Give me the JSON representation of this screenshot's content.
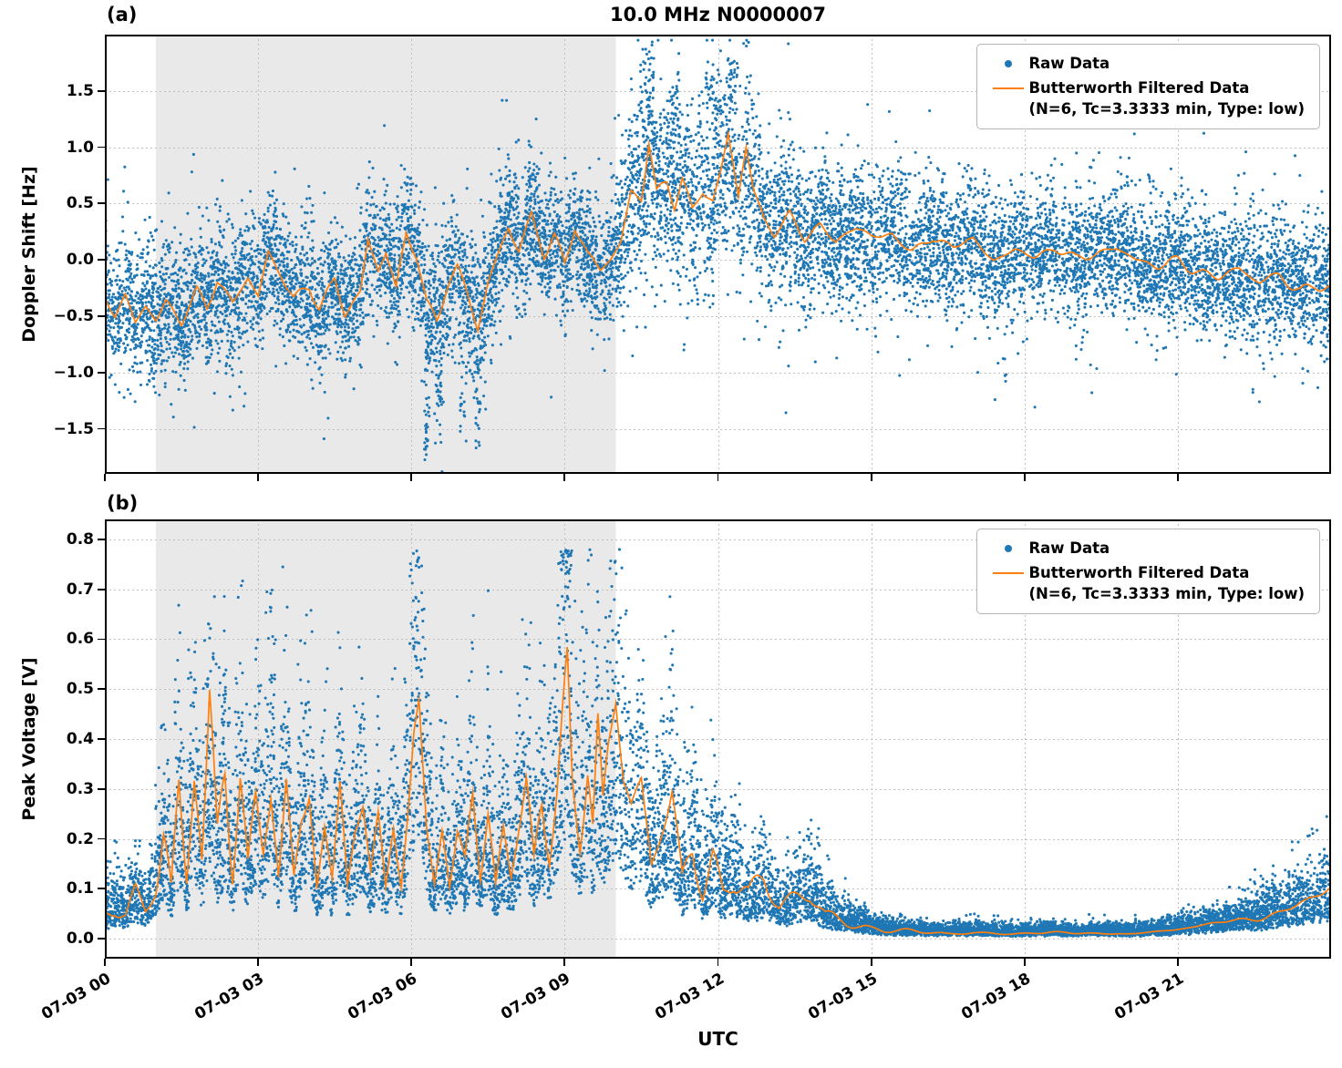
{
  "figure": {
    "title": "10.0 MHz N0000007",
    "xlabel": "UTC",
    "background": "#ffffff",
    "colors": {
      "raw": "#1f77b4",
      "filtered": "#ff7f0e",
      "shade": "#e9e9e9",
      "grid": "#bfbfbf",
      "axis": "#000000"
    }
  },
  "legend": {
    "raw_label": "Raw Data",
    "filtered_label": "Butterworth Filtered Data",
    "filtered_sublabel": "(N=6, Tc=3.3333 min, Type: low)"
  },
  "chart_data": [
    {
      "type": "scatter",
      "panel_key": "a",
      "panel_label": "(a)",
      "ylabel": "Doppler Shift [Hz]",
      "ylim": [
        -1.9,
        2.0
      ],
      "yticks": [
        1.5,
        1.0,
        0.5,
        0.0,
        -0.5,
        -1.0,
        -1.5
      ],
      "ytick_labels": [
        "1.5",
        "1.0",
        "0.5",
        "0.0",
        "−0.5",
        "−1.0",
        "−1.5"
      ],
      "xlim_hours": [
        0,
        24
      ],
      "xticks_hours": [
        0,
        3,
        6,
        9,
        12,
        15,
        18,
        21
      ],
      "shade_hours": [
        1,
        10
      ],
      "grid": true,
      "series": [
        {
          "name": "Raw Data",
          "kind": "scatter",
          "n": 12000,
          "wide_frac": 0.1,
          "wide_mult": 1.7,
          "spread_t": [
            0,
            1,
            3,
            5,
            6,
            7,
            8,
            9.5,
            10,
            10.4,
            11,
            12.6,
            13.2,
            14,
            16,
            18,
            20,
            22,
            24
          ],
          "spread_v": [
            0.27,
            0.3,
            0.28,
            0.28,
            0.3,
            0.32,
            0.28,
            0.26,
            0.28,
            0.4,
            0.38,
            0.4,
            0.33,
            0.3,
            0.28,
            0.27,
            0.27,
            0.27,
            0.28
          ],
          "outliers": [
            {
              "t": 1.0,
              "n": 15,
              "v": -0.95,
              "st": 0.2,
              "sv": 0.12
            },
            {
              "t": 6.3,
              "n": 28,
              "v": -1.45,
              "st": 0.05,
              "sv": 0.22
            },
            {
              "t": 6.55,
              "n": 22,
              "v": -1.15,
              "st": 0.05,
              "sv": 0.28
            },
            {
              "t": 7.0,
              "n": 22,
              "v": -1.05,
              "st": 0.08,
              "sv": 0.3
            },
            {
              "t": 7.3,
              "n": 18,
              "v": -1.35,
              "st": 0.05,
              "sv": 0.25
            },
            {
              "t": 10.6,
              "n": 45,
              "v": 1.45,
              "st": 0.15,
              "sv": 0.22
            },
            {
              "t": 11.15,
              "n": 30,
              "v": 1.35,
              "st": 0.1,
              "sv": 0.22
            },
            {
              "t": 11.9,
              "n": 40,
              "v": 1.5,
              "st": 0.14,
              "sv": 0.22
            },
            {
              "t": 12.3,
              "n": 25,
              "v": 1.55,
              "st": 0.08,
              "sv": 0.18
            },
            {
              "t": 17.6,
              "n": 5,
              "v": -1.0,
              "st": 0.04,
              "sv": 0.1
            }
          ]
        },
        {
          "name": "Butterworth Filtered Data (N=6, Tc=3.3333 min, Type: low)",
          "kind": "line",
          "noise_amp": 0.09,
          "t": [
            0,
            0.2,
            0.4,
            0.6,
            0.8,
            1.0,
            1.2,
            1.5,
            1.8,
            2.0,
            2.2,
            2.5,
            2.8,
            3.0,
            3.2,
            3.45,
            3.7,
            4.0,
            4.2,
            4.5,
            4.7,
            5.0,
            5.15,
            5.35,
            5.5,
            5.7,
            5.9,
            6.1,
            6.3,
            6.5,
            6.7,
            6.9,
            7.1,
            7.3,
            7.5,
            7.7,
            7.9,
            8.1,
            8.35,
            8.6,
            8.8,
            9.0,
            9.2,
            9.45,
            9.7,
            9.9,
            10.1,
            10.3,
            10.5,
            10.65,
            10.8,
            11.0,
            11.15,
            11.3,
            11.5,
            11.7,
            11.9,
            12.05,
            12.2,
            12.4,
            12.55,
            12.7,
            12.9,
            13.1,
            13.4,
            13.7,
            14.0,
            14.3,
            14.7,
            15.0,
            15.4,
            15.8,
            16.2,
            16.6,
            17.0,
            17.4,
            17.8,
            18.2,
            18.6,
            19.0,
            19.4,
            19.8,
            20.2,
            20.6,
            21.0,
            21.4,
            21.8,
            22.2,
            22.6,
            23.0,
            23.4,
            23.7,
            24.0
          ],
          "v": [
            -0.35,
            -0.5,
            -0.3,
            -0.55,
            -0.4,
            -0.5,
            -0.35,
            -0.55,
            -0.3,
            -0.45,
            -0.2,
            -0.4,
            -0.15,
            -0.3,
            0.1,
            -0.1,
            -0.35,
            -0.25,
            -0.45,
            -0.2,
            -0.5,
            -0.3,
            0.2,
            -0.05,
            0.1,
            -0.25,
            0.25,
            0.05,
            -0.4,
            -0.55,
            -0.25,
            -0.1,
            -0.3,
            -0.6,
            -0.2,
            0.05,
            0.3,
            0.1,
            0.4,
            0.05,
            0.2,
            -0.05,
            0.3,
            0.05,
            -0.1,
            0.0,
            0.15,
            0.6,
            0.55,
            1.05,
            0.6,
            0.7,
            0.5,
            0.75,
            0.45,
            0.6,
            0.5,
            0.75,
            1.1,
            0.55,
            1.0,
            0.6,
            0.35,
            0.25,
            0.45,
            0.2,
            0.3,
            0.15,
            0.25,
            0.2,
            0.25,
            0.1,
            0.2,
            0.1,
            0.15,
            0.0,
            0.1,
            0.05,
            0.1,
            0.0,
            0.05,
            0.1,
            0.0,
            -0.05,
            0.0,
            -0.1,
            -0.15,
            -0.1,
            -0.2,
            -0.15,
            -0.25,
            -0.2,
            -0.25
          ]
        }
      ]
    },
    {
      "type": "scatter",
      "panel_key": "b",
      "panel_label": "(b)",
      "ylabel": "Peak Voltage [V]",
      "ylim": [
        -0.04,
        0.84
      ],
      "yticks": [
        0.8,
        0.7,
        0.6,
        0.5,
        0.4,
        0.3,
        0.2,
        0.1,
        0.0
      ],
      "ytick_labels": [
        "0.8",
        "0.7",
        "0.6",
        "0.5",
        "0.4",
        "0.3",
        "0.2",
        "0.1",
        "0.0"
      ],
      "xlim_hours": [
        0,
        24
      ],
      "xticks_hours": [
        0,
        3,
        6,
        9,
        12,
        15,
        18,
        21
      ],
      "xtick_labels": [
        "07-03 00",
        "07-03 03",
        "07-03 06",
        "07-03 09",
        "07-03 12",
        "07-03 15",
        "07-03 18",
        "07-03 21"
      ],
      "shade_hours": [
        1,
        10
      ],
      "grid": true,
      "series": [
        {
          "name": "Raw Data",
          "kind": "scatter",
          "n": 12000,
          "k0": 0.35,
          "k1": 0.8,
          "add": 0.008,
          "spike_frac": 0.06,
          "spike_base": 0.9,
          "spike_mult": 0.55,
          "min": 0.002,
          "max": 0.78
        },
        {
          "name": "Butterworth Filtered Data (N=6, Tc=3.3333 min, Type: low)",
          "kind": "line",
          "noise_rel": 0.45,
          "floor": 0.004,
          "t": [
            0,
            0.2,
            0.4,
            0.6,
            0.8,
            1.0,
            1.15,
            1.3,
            1.45,
            1.6,
            1.75,
            1.9,
            2.05,
            2.2,
            2.35,
            2.5,
            2.65,
            2.8,
            2.95,
            3.1,
            3.25,
            3.4,
            3.55,
            3.7,
            3.85,
            4.0,
            4.15,
            4.3,
            4.45,
            4.6,
            4.75,
            4.9,
            5.05,
            5.2,
            5.35,
            5.5,
            5.65,
            5.8,
            5.95,
            6.05,
            6.15,
            6.3,
            6.45,
            6.6,
            6.75,
            6.9,
            7.05,
            7.2,
            7.35,
            7.5,
            7.65,
            7.8,
            7.95,
            8.1,
            8.25,
            8.4,
            8.55,
            8.7,
            8.85,
            8.95,
            9.05,
            9.15,
            9.3,
            9.45,
            9.55,
            9.65,
            9.75,
            9.85,
            10.0,
            10.15,
            10.3,
            10.5,
            10.7,
            10.9,
            11.1,
            11.3,
            11.5,
            11.7,
            11.9,
            12.1,
            12.3,
            12.6,
            12.9,
            13.2,
            13.5,
            13.8,
            14.1,
            14.5,
            15.0,
            15.5,
            16.0,
            16.5,
            17.0,
            17.5,
            18.0,
            18.5,
            19.0,
            19.5,
            20.0,
            20.5,
            21.0,
            21.5,
            22.0,
            22.5,
            23.0,
            23.5,
            24.0
          ],
          "v": [
            0.05,
            0.07,
            0.05,
            0.09,
            0.06,
            0.12,
            0.22,
            0.1,
            0.3,
            0.12,
            0.35,
            0.15,
            0.4,
            0.18,
            0.3,
            0.12,
            0.35,
            0.15,
            0.28,
            0.2,
            0.38,
            0.14,
            0.3,
            0.12,
            0.25,
            0.3,
            0.1,
            0.22,
            0.12,
            0.3,
            0.1,
            0.2,
            0.25,
            0.12,
            0.22,
            0.1,
            0.25,
            0.12,
            0.3,
            0.45,
            0.53,
            0.25,
            0.12,
            0.22,
            0.1,
            0.2,
            0.15,
            0.28,
            0.12,
            0.25,
            0.1,
            0.2,
            0.12,
            0.22,
            0.3,
            0.15,
            0.28,
            0.18,
            0.35,
            0.5,
            0.62,
            0.35,
            0.2,
            0.35,
            0.22,
            0.4,
            0.25,
            0.35,
            0.45,
            0.3,
            0.25,
            0.3,
            0.15,
            0.22,
            0.28,
            0.12,
            0.2,
            0.1,
            0.17,
            0.1,
            0.13,
            0.08,
            0.11,
            0.06,
            0.08,
            0.1,
            0.05,
            0.035,
            0.02,
            0.015,
            0.013,
            0.01,
            0.013,
            0.01,
            0.01,
            0.012,
            0.01,
            0.012,
            0.01,
            0.013,
            0.018,
            0.025,
            0.035,
            0.045,
            0.055,
            0.07,
            0.095
          ]
        }
      ]
    }
  ]
}
